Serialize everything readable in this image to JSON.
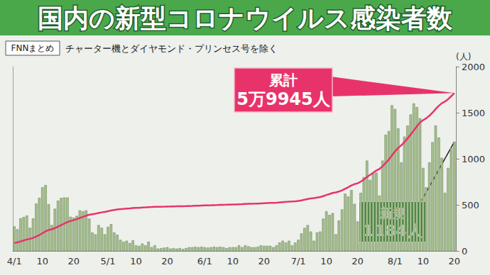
{
  "chart_data": {
    "type": "bar",
    "title": "国内の新型コロナウイルス感染者数",
    "source": "FNNまとめ",
    "subtitle": "チャーター機とダイヤモンド・プリンセス号を除く",
    "y_label": "(人)",
    "categories": [
      "4/1",
      null,
      null,
      null,
      null,
      null,
      null,
      null,
      null,
      "10",
      null,
      null,
      null,
      null,
      null,
      null,
      null,
      null,
      null,
      "20",
      null,
      null,
      null,
      null,
      null,
      null,
      null,
      null,
      null,
      null,
      "5/1",
      null,
      null,
      null,
      null,
      null,
      null,
      null,
      null,
      "10",
      null,
      null,
      null,
      null,
      null,
      null,
      null,
      null,
      null,
      "20",
      null,
      null,
      null,
      null,
      null,
      null,
      null,
      null,
      null,
      null,
      null,
      "6/1",
      null,
      null,
      null,
      null,
      null,
      null,
      null,
      null,
      "10",
      null,
      null,
      null,
      null,
      null,
      null,
      null,
      null,
      null,
      "20",
      null,
      null,
      null,
      null,
      null,
      null,
      null,
      null,
      null,
      null,
      "7/1",
      null,
      null,
      null,
      null,
      null,
      null,
      null,
      null,
      "10",
      null,
      null,
      null,
      null,
      null,
      null,
      null,
      null,
      null,
      "20",
      null,
      null,
      null,
      null,
      null,
      null,
      null,
      null,
      null,
      null,
      null,
      "8/1",
      null,
      null,
      null,
      null,
      null,
      null,
      null,
      null,
      "10",
      null,
      null,
      null,
      null,
      null,
      null,
      null,
      null,
      null,
      "20"
    ],
    "series": [
      {
        "name": "新規",
        "type": "bar",
        "color": "#a6bf8e",
        "values": [
          266,
          235,
          353,
          367,
          383,
          250,
          352,
          513,
          576,
          690,
          714,
          507,
          280,
          457,
          545,
          575,
          580,
          580,
          370,
          360,
          380,
          440,
          430,
          440,
          350,
          200,
          180,
          280,
          250,
          180,
          260,
          290,
          200,
          175,
          120,
          100,
          110,
          85,
          115,
          60,
          55,
          80,
          60,
          100,
          40,
          60,
          25,
          30,
          35,
          40,
          25,
          30,
          25,
          30,
          20,
          30,
          40,
          40,
          45,
          40,
          45,
          40,
          35,
          40,
          45,
          40,
          45,
          40,
          30,
          40,
          40,
          40,
          60,
          40,
          60,
          50,
          40,
          40,
          45,
          60,
          55,
          55,
          55,
          40,
          60,
          90,
          110,
          90,
          110,
          60,
          90,
          120,
          190,
          250,
          280,
          210,
          110,
          200,
          210,
          350,
          430,
          390,
          410,
          180,
          330,
          450,
          620,
          590,
          660,
          510,
          320,
          630,
          800,
          980,
          770,
          840,
          850,
          600,
          980,
          1260,
          1300,
          1580,
          1540,
          1330,
          960,
          1240,
          1360,
          1480,
          1600,
          1560,
          1440,
          900,
          690,
          960,
          1180,
          1360,
          1230,
          1010,
          630,
          900,
          1120,
          1184
        ]
      },
      {
        "name": "累計",
        "type": "line",
        "color": "#e8336a",
        "axis": "y2",
        "values": [
          3000,
          3235,
          3588,
          3955,
          4338,
          4588,
          4940,
          5453,
          6029,
          6719,
          7433,
          7940,
          8220,
          8677,
          9222,
          9797,
          10377,
          10957,
          11327,
          11687,
          12067,
          12507,
          12937,
          13377,
          13727,
          13927,
          14107,
          14387,
          14637,
          14817,
          15077,
          15367,
          15567,
          15742,
          15862,
          15962,
          16072,
          16157,
          16272,
          16332,
          16387,
          16467,
          16527,
          16627,
          16667,
          16727,
          16752,
          16782,
          16817,
          16857,
          16882,
          16912,
          16937,
          16967,
          16987,
          17017,
          17057,
          17097,
          17142,
          17182,
          17227,
          17267,
          17302,
          17342,
          17387,
          17427,
          17472,
          17512,
          17542,
          17582,
          17622,
          17662,
          17722,
          17762,
          17822,
          17872,
          17912,
          17952,
          17997,
          18057,
          18112,
          18167,
          18222,
          18262,
          18322,
          18412,
          18522,
          18612,
          18722,
          18782,
          18872,
          18992,
          19182,
          19432,
          19712,
          19922,
          20032,
          20232,
          20442,
          20792,
          21222,
          21612,
          22022,
          22202,
          22532,
          22982,
          23602,
          24192,
          24852,
          25362,
          25682,
          26312,
          27112,
          28092,
          28862,
          29702,
          30552,
          31152,
          32132,
          33392,
          34692,
          36272,
          37812,
          39142,
          40102,
          41342,
          42702,
          44182,
          45782,
          47342,
          48782,
          49682,
          50372,
          51332,
          52512,
          53872,
          55102,
          56112,
          56742,
          57642,
          58762,
          59945
        ]
      }
    ],
    "annotations": [
      {
        "series": "累計",
        "text": "5万9945人"
      },
      {
        "series": "新規",
        "text": "1184人"
      }
    ],
    "ylim": [
      0,
      2000
    ],
    "yticks": [
      0,
      500,
      1000,
      1500,
      2000
    ],
    "y2lim": [
      0,
      70000
    ],
    "y2ticks": [],
    "grid": false
  }
}
